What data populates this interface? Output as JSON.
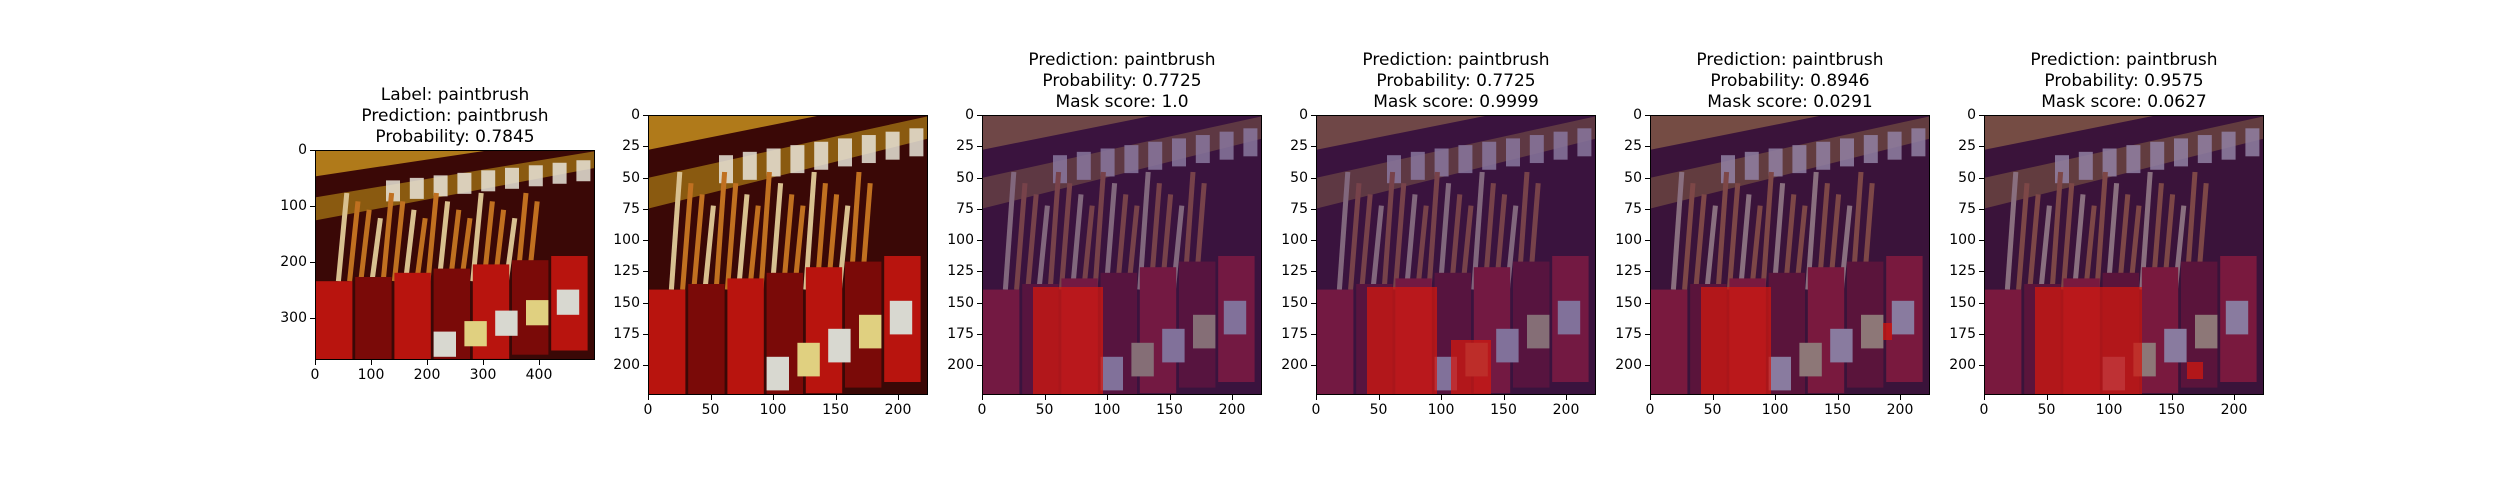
{
  "panels": [
    {
      "name": "original",
      "title_lines": [
        "Label: paintbrush",
        "Prediction: paintbrush",
        "Probability: 0.7845"
      ],
      "xticks": [
        0,
        100,
        200,
        300,
        400
      ],
      "yticks": [
        0,
        100,
        200,
        300
      ],
      "xrange": [
        0,
        500
      ],
      "yrange": [
        0,
        375
      ],
      "overlay_color": "",
      "overlay_opacity": 0
    },
    {
      "name": "resized",
      "title_lines": [],
      "xticks": [
        0,
        50,
        100,
        150,
        200
      ],
      "yticks": [
        0,
        25,
        50,
        75,
        100,
        125,
        150,
        175,
        200
      ],
      "xrange": [
        0,
        224
      ],
      "yrange": [
        0,
        224
      ],
      "overlay_color": "",
      "overlay_opacity": 0
    },
    {
      "name": "mask-1",
      "title_lines": [
        "Prediction: paintbrush",
        "Probability: 0.7725",
        "Mask score: 1.0"
      ],
      "xticks": [
        0,
        50,
        100,
        150,
        200
      ],
      "yticks": [
        0,
        25,
        50,
        75,
        100,
        125,
        150,
        175,
        200
      ],
      "xrange": [
        0,
        224
      ],
      "yrange": [
        0,
        224
      ],
      "overlay_color": "#3a1d6e",
      "overlay_opacity": 0.55
    },
    {
      "name": "mask-2",
      "title_lines": [
        "Prediction: paintbrush",
        "Probability: 0.7725",
        "Mask score: 0.9999"
      ],
      "xticks": [
        0,
        50,
        100,
        150,
        200
      ],
      "yticks": [
        0,
        25,
        50,
        75,
        100,
        125,
        150,
        175,
        200
      ],
      "xrange": [
        0,
        224
      ],
      "yrange": [
        0,
        224
      ],
      "overlay_color": "#3a1d6e",
      "overlay_opacity": 0.55
    },
    {
      "name": "mask-3",
      "title_lines": [
        "Prediction: paintbrush",
        "Probability: 0.8946",
        "Mask score: 0.0291"
      ],
      "xticks": [
        0,
        50,
        100,
        150,
        200
      ],
      "yticks": [
        0,
        25,
        50,
        75,
        100,
        125,
        150,
        175,
        200
      ],
      "xrange": [
        0,
        224
      ],
      "yrange": [
        0,
        224
      ],
      "overlay_color": "#3a1d6e",
      "overlay_opacity": 0.5
    },
    {
      "name": "mask-4",
      "title_lines": [
        "Prediction: paintbrush",
        "Probability: 0.9575",
        "Mask score: 0.0627"
      ],
      "xticks": [
        0,
        50,
        100,
        150,
        200
      ],
      "yticks": [
        0,
        25,
        50,
        75,
        100,
        125,
        150,
        175,
        200
      ],
      "xrange": [
        0,
        224
      ],
      "yrange": [
        0,
        224
      ],
      "overlay_color": "#3a1d6e",
      "overlay_opacity": 0.5
    }
  ],
  "colors": {
    "shelf": "#8a5a10",
    "cup_red": "#b8140e",
    "cup_dark": "#7a0a08",
    "label_white": "#e8e4d8",
    "brush_orange": "#c07020",
    "background_dark": "#3a0806",
    "mask_highlight": "#d01810"
  }
}
